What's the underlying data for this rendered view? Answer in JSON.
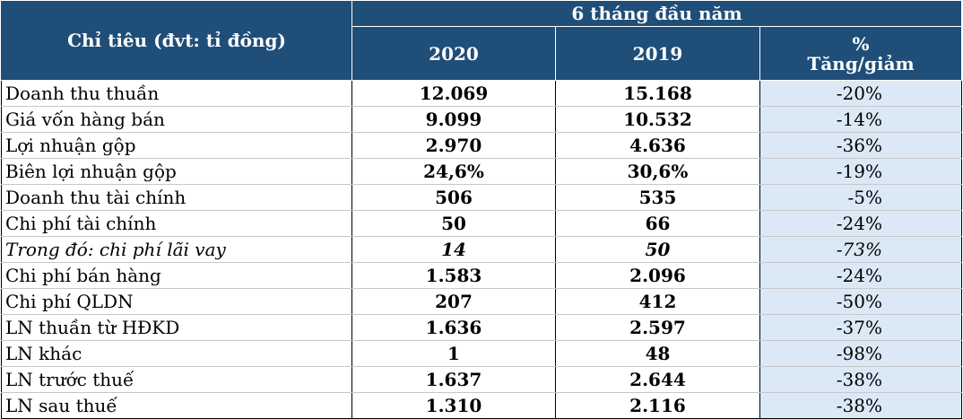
{
  "header": {
    "label_col": "Chỉ tiêu (đvt: tỉ đồng)",
    "period": "6 tháng đầu năm",
    "year_current": "2020",
    "year_prior": "2019",
    "change_line1": "%",
    "change_line2": "Tăng/giảm"
  },
  "rows": [
    {
      "label": "Doanh thu thuần",
      "v2020": "12.069",
      "v2019": "15.168",
      "change": "-20%"
    },
    {
      "label": "Giá vốn hàng bán",
      "v2020": "9.099",
      "v2019": "10.532",
      "change": "-14%"
    },
    {
      "label": "Lợi nhuận gộp",
      "v2020": "2.970",
      "v2019": "4.636",
      "change": "-36%"
    },
    {
      "label": "Biên lợi nhuận gộp",
      "v2020": "24,6%",
      "v2019": "30,6%",
      "change": "-19%"
    },
    {
      "label": "Doanh thu tài chính",
      "v2020": "506",
      "v2019": "535",
      "change": "-5%"
    },
    {
      "label": "Chi phí tài chính",
      "v2020": "50",
      "v2019": "66",
      "change": "-24%"
    },
    {
      "label": "Trong đó: chi phí lãi vay",
      "v2020": "14",
      "v2019": "50",
      "change": "-73%"
    },
    {
      "label": "Chi phí bán hàng",
      "v2020": "1.583",
      "v2019": "2.096",
      "change": "-24%"
    },
    {
      "label": "Chi phí QLDN",
      "v2020": "207",
      "v2019": "412",
      "change": "-50%"
    },
    {
      "label": "LN thuần từ HĐKD",
      "v2020": "1.636",
      "v2019": "2.597",
      "change": "-37%"
    },
    {
      "label": "LN khác",
      "v2020": "1",
      "v2019": "48",
      "change": "-98%"
    },
    {
      "label": "LN trước thuế",
      "v2020": "1.637",
      "v2019": "2.644",
      "change": "-38%"
    },
    {
      "label": "LN sau thuế",
      "v2020": "1.310",
      "v2019": "2.116",
      "change": "-38%"
    }
  ],
  "colors": {
    "header_bg": "#1f4e79",
    "header_text": "#ffffff",
    "change_col_bg": "#dbe9f7"
  }
}
